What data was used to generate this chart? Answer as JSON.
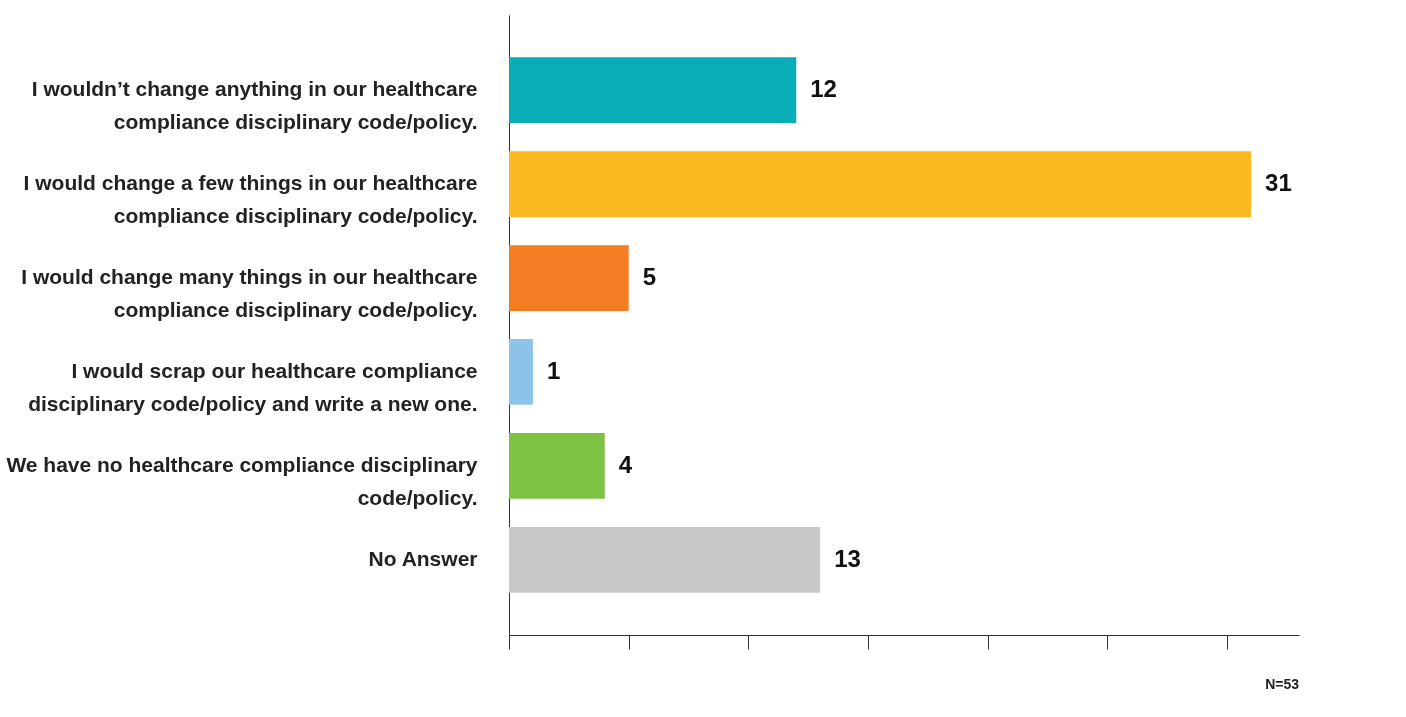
{
  "chart_data": {
    "type": "bar",
    "orientation": "horizontal",
    "categories": [
      "I wouldn’t change anything in our healthcare compliance disciplinary code/policy.",
      "I would change a few things in our healthcare compliance disciplinary code/policy.",
      "I would change many things in our healthcare compliance disciplinary code/policy.",
      "I would scrap our healthcare compliance disciplinary code/policy and write a new one.",
      "We have no healthcare compliance disciplinary code/policy.",
      "No Answer"
    ],
    "values": [
      12,
      31,
      5,
      1,
      4,
      13
    ],
    "colors": [
      "#0aacb8",
      "#fbb820",
      "#f27d22",
      "#8dc3e8",
      "#7dc243",
      "#c7c8ca"
    ],
    "xlim": [
      0,
      33
    ],
    "xticks": [
      {
        "value": 0,
        "label": null
      },
      {
        "value": 5,
        "label": null
      },
      {
        "value": 10,
        "label": null
      },
      {
        "value": 15,
        "label": null
      },
      {
        "value": 20,
        "label": null
      },
      {
        "value": 25,
        "label": null
      },
      {
        "value": 30,
        "label": null
      }
    ],
    "data_labels": true,
    "grid": false,
    "annotations": [
      "N=53"
    ]
  }
}
